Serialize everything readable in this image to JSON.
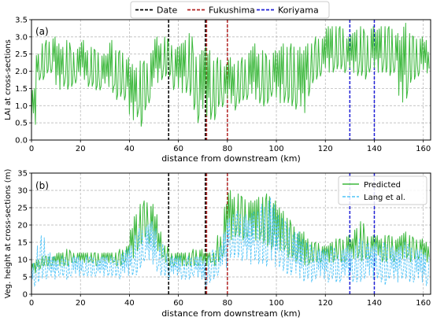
{
  "colors": {
    "date_line": "#000000",
    "fukushima_line": "#b22222",
    "koriyama_line": "#1f1fd6",
    "lai_series": "#3cb83c",
    "predicted_series": "#3cb83c",
    "lang_series": "#4fc3f7",
    "grid": "#b0b0b0"
  },
  "legend_top": {
    "placement": "top-center",
    "entries": [
      "Date",
      "Fukushima",
      "Koriyama"
    ]
  },
  "chart_data": [
    {
      "type": "line",
      "panel_label": "(a)",
      "xlabel": "distance from downstream (km)",
      "ylabel": "LAI at cross-sections",
      "xlim": [
        0,
        163
      ],
      "ylim": [
        0,
        3.5
      ],
      "xticks": [
        "0",
        "20",
        "40",
        "60",
        "80",
        "100",
        "120",
        "140",
        "160"
      ],
      "yticks": [
        "0.0",
        "0.5",
        "1.0",
        "1.5",
        "2.0",
        "2.5",
        "3.0",
        "3.5"
      ],
      "grid": true,
      "vlines": [
        {
          "group": "Date",
          "x": 56
        },
        {
          "group": "Date",
          "x": 71
        },
        {
          "group": "Fukushima",
          "x": 71.5
        },
        {
          "group": "Fukushima",
          "x": 80
        },
        {
          "group": "Koriyama",
          "x": 130
        },
        {
          "group": "Koriyama",
          "x": 140
        }
      ],
      "series": [
        {
          "step_km": 2,
          "x_start": 0,
          "min_values": [
            0.4,
            1.7,
            1.7,
            1.9,
            1.9,
            1.4,
            1.5,
            1.4,
            1.5,
            1.6,
            1.7,
            1.5,
            1.5,
            1.4,
            1.4,
            1.5,
            1.3,
            1.1,
            1.2,
            1.1,
            0.5,
            0.6,
            0.3,
            0.8,
            1.0,
            1.6,
            1.7,
            1.8,
            1.8,
            1.4,
            1.3,
            1.3,
            1.2,
            0.8,
            0.4,
            0.6,
            0.5,
            0.5,
            0.9,
            0.9,
            1.0,
            0.8,
            1.0,
            1.1,
            1.1,
            1.1,
            1.0,
            0.9,
            1.0,
            1.2,
            1.0,
            1.0,
            1.0,
            0.9,
            0.8,
            0.7,
            1.2,
            1.6,
            1.7,
            1.8,
            1.9,
            1.9,
            2.0,
            2.0,
            1.9,
            1.9,
            1.8,
            1.8,
            1.7,
            1.9,
            1.9,
            1.9,
            1.9,
            1.8,
            1.9,
            1.0,
            1.1,
            1.6,
            1.7,
            1.8,
            1.9,
            1.8
          ],
          "max_values": [
            1.5,
            2.5,
            2.8,
            2.9,
            3.0,
            2.8,
            2.7,
            2.9,
            2.6,
            2.7,
            2.9,
            2.6,
            2.7,
            2.6,
            2.5,
            2.5,
            2.9,
            2.6,
            2.6,
            2.4,
            2.2,
            2.1,
            2.3,
            2.3,
            2.6,
            3.0,
            2.8,
            3.0,
            2.8,
            2.7,
            2.8,
            2.9,
            3.1,
            2.5,
            2.6,
            2.7,
            2.6,
            2.3,
            2.4,
            2.2,
            2.4,
            2.2,
            2.3,
            2.4,
            2.6,
            2.8,
            2.5,
            2.6,
            2.4,
            2.6,
            2.6,
            2.8,
            2.7,
            2.8,
            2.7,
            2.6,
            2.8,
            2.8,
            3.0,
            3.0,
            3.3,
            3.3,
            3.3,
            3.3,
            3.0,
            3.1,
            3.2,
            3.3,
            3.1,
            3.3,
            3.2,
            3.3,
            3.3,
            3.3,
            3.1,
            3.0,
            3.4,
            3.1,
            3.0,
            3.0,
            2.9,
            2.6
          ]
        }
      ]
    },
    {
      "type": "line",
      "panel_label": "(b)",
      "xlabel": "distance from downstream (km)",
      "ylabel": "Veg. height at cross-sections (m)",
      "xlim": [
        0,
        163
      ],
      "ylim": [
        0,
        35
      ],
      "xticks": [
        "0",
        "20",
        "40",
        "60",
        "80",
        "100",
        "120",
        "140",
        "160"
      ],
      "yticks": [
        "0",
        "5",
        "10",
        "15",
        "20",
        "25",
        "30",
        "35"
      ],
      "grid": true,
      "legend": {
        "placement": "top-right"
      },
      "vlines": [
        {
          "group": "Date",
          "x": 56
        },
        {
          "group": "Date",
          "x": 71
        },
        {
          "group": "Fukushima",
          "x": 71.5
        },
        {
          "group": "Fukushima",
          "x": 80
        },
        {
          "group": "Koriyama",
          "x": 130
        },
        {
          "group": "Koriyama",
          "x": 140
        }
      ],
      "series": [
        {
          "name": "Predicted",
          "step_km": 2,
          "x_start": 0,
          "min_values": [
            6,
            7,
            8,
            8,
            8,
            8,
            8,
            8,
            9,
            9,
            9,
            9,
            9,
            8,
            9,
            9,
            9,
            8,
            8,
            9,
            10,
            12,
            14,
            16,
            14,
            12,
            10,
            9,
            8,
            8,
            8,
            8,
            8,
            8,
            8,
            8,
            9,
            8,
            9,
            10,
            15,
            16,
            16,
            15,
            16,
            15,
            15,
            14,
            13,
            12,
            12,
            12,
            10,
            10,
            9,
            8,
            8,
            9,
            9,
            9,
            9,
            9,
            10,
            9,
            9,
            10,
            10,
            9,
            10,
            10,
            11,
            9,
            9,
            10,
            9,
            10,
            10,
            9,
            10,
            10,
            9,
            9
          ],
          "max_values": [
            9,
            10,
            11,
            11,
            11,
            12,
            12,
            13,
            12,
            12,
            12,
            12,
            12,
            12,
            12,
            12,
            12,
            12,
            13,
            14,
            19,
            23,
            26,
            27,
            26,
            23,
            18,
            14,
            12,
            12,
            12,
            12,
            12,
            13,
            13,
            12,
            12,
            12,
            17,
            26,
            30,
            28,
            29,
            28,
            27,
            27,
            28,
            28,
            29,
            27,
            25,
            24,
            22,
            20,
            18,
            18,
            16,
            15,
            15,
            14,
            14,
            15,
            16,
            16,
            17,
            16,
            19,
            21,
            17,
            17,
            17,
            16,
            17,
            17,
            16,
            17,
            18,
            17,
            16,
            16,
            15,
            14
          ]
        },
        {
          "name": "Lang et al.",
          "step_km": 2,
          "x_start": 0,
          "min_values": [
            2,
            3,
            4,
            4,
            4,
            5,
            5,
            4,
            5,
            5,
            5,
            5,
            5,
            5,
            5,
            5,
            5,
            5,
            4,
            5,
            5,
            5,
            7,
            9,
            8,
            6,
            5,
            5,
            4,
            5,
            4,
            4,
            4,
            5,
            4,
            2,
            3,
            4,
            5,
            7,
            10,
            10,
            10,
            9,
            8,
            9,
            8,
            8,
            7,
            7,
            7,
            6,
            5,
            5,
            4,
            3,
            4,
            3,
            4,
            4,
            3,
            4,
            3,
            3,
            4,
            3,
            3,
            3,
            4,
            4,
            4,
            3,
            2,
            4,
            3,
            4,
            4,
            3,
            3,
            3,
            2,
            2
          ],
          "max_values": [
            9,
            14,
            17,
            12,
            11,
            10,
            11,
            10,
            11,
            11,
            10,
            11,
            11,
            10,
            11,
            11,
            11,
            10,
            12,
            13,
            14,
            17,
            19,
            20,
            21,
            19,
            15,
            12,
            11,
            11,
            11,
            10,
            11,
            11,
            11,
            10,
            11,
            13,
            14,
            18,
            22,
            23,
            24,
            23,
            22,
            24,
            24,
            26,
            28,
            26,
            23,
            22,
            20,
            18,
            18,
            16,
            15,
            14,
            13,
            13,
            13,
            14,
            12,
            13,
            14,
            13,
            14,
            16,
            15,
            14,
            15,
            14,
            15,
            14,
            13,
            14,
            15,
            14,
            13,
            13,
            12,
            11
          ]
        }
      ]
    }
  ]
}
